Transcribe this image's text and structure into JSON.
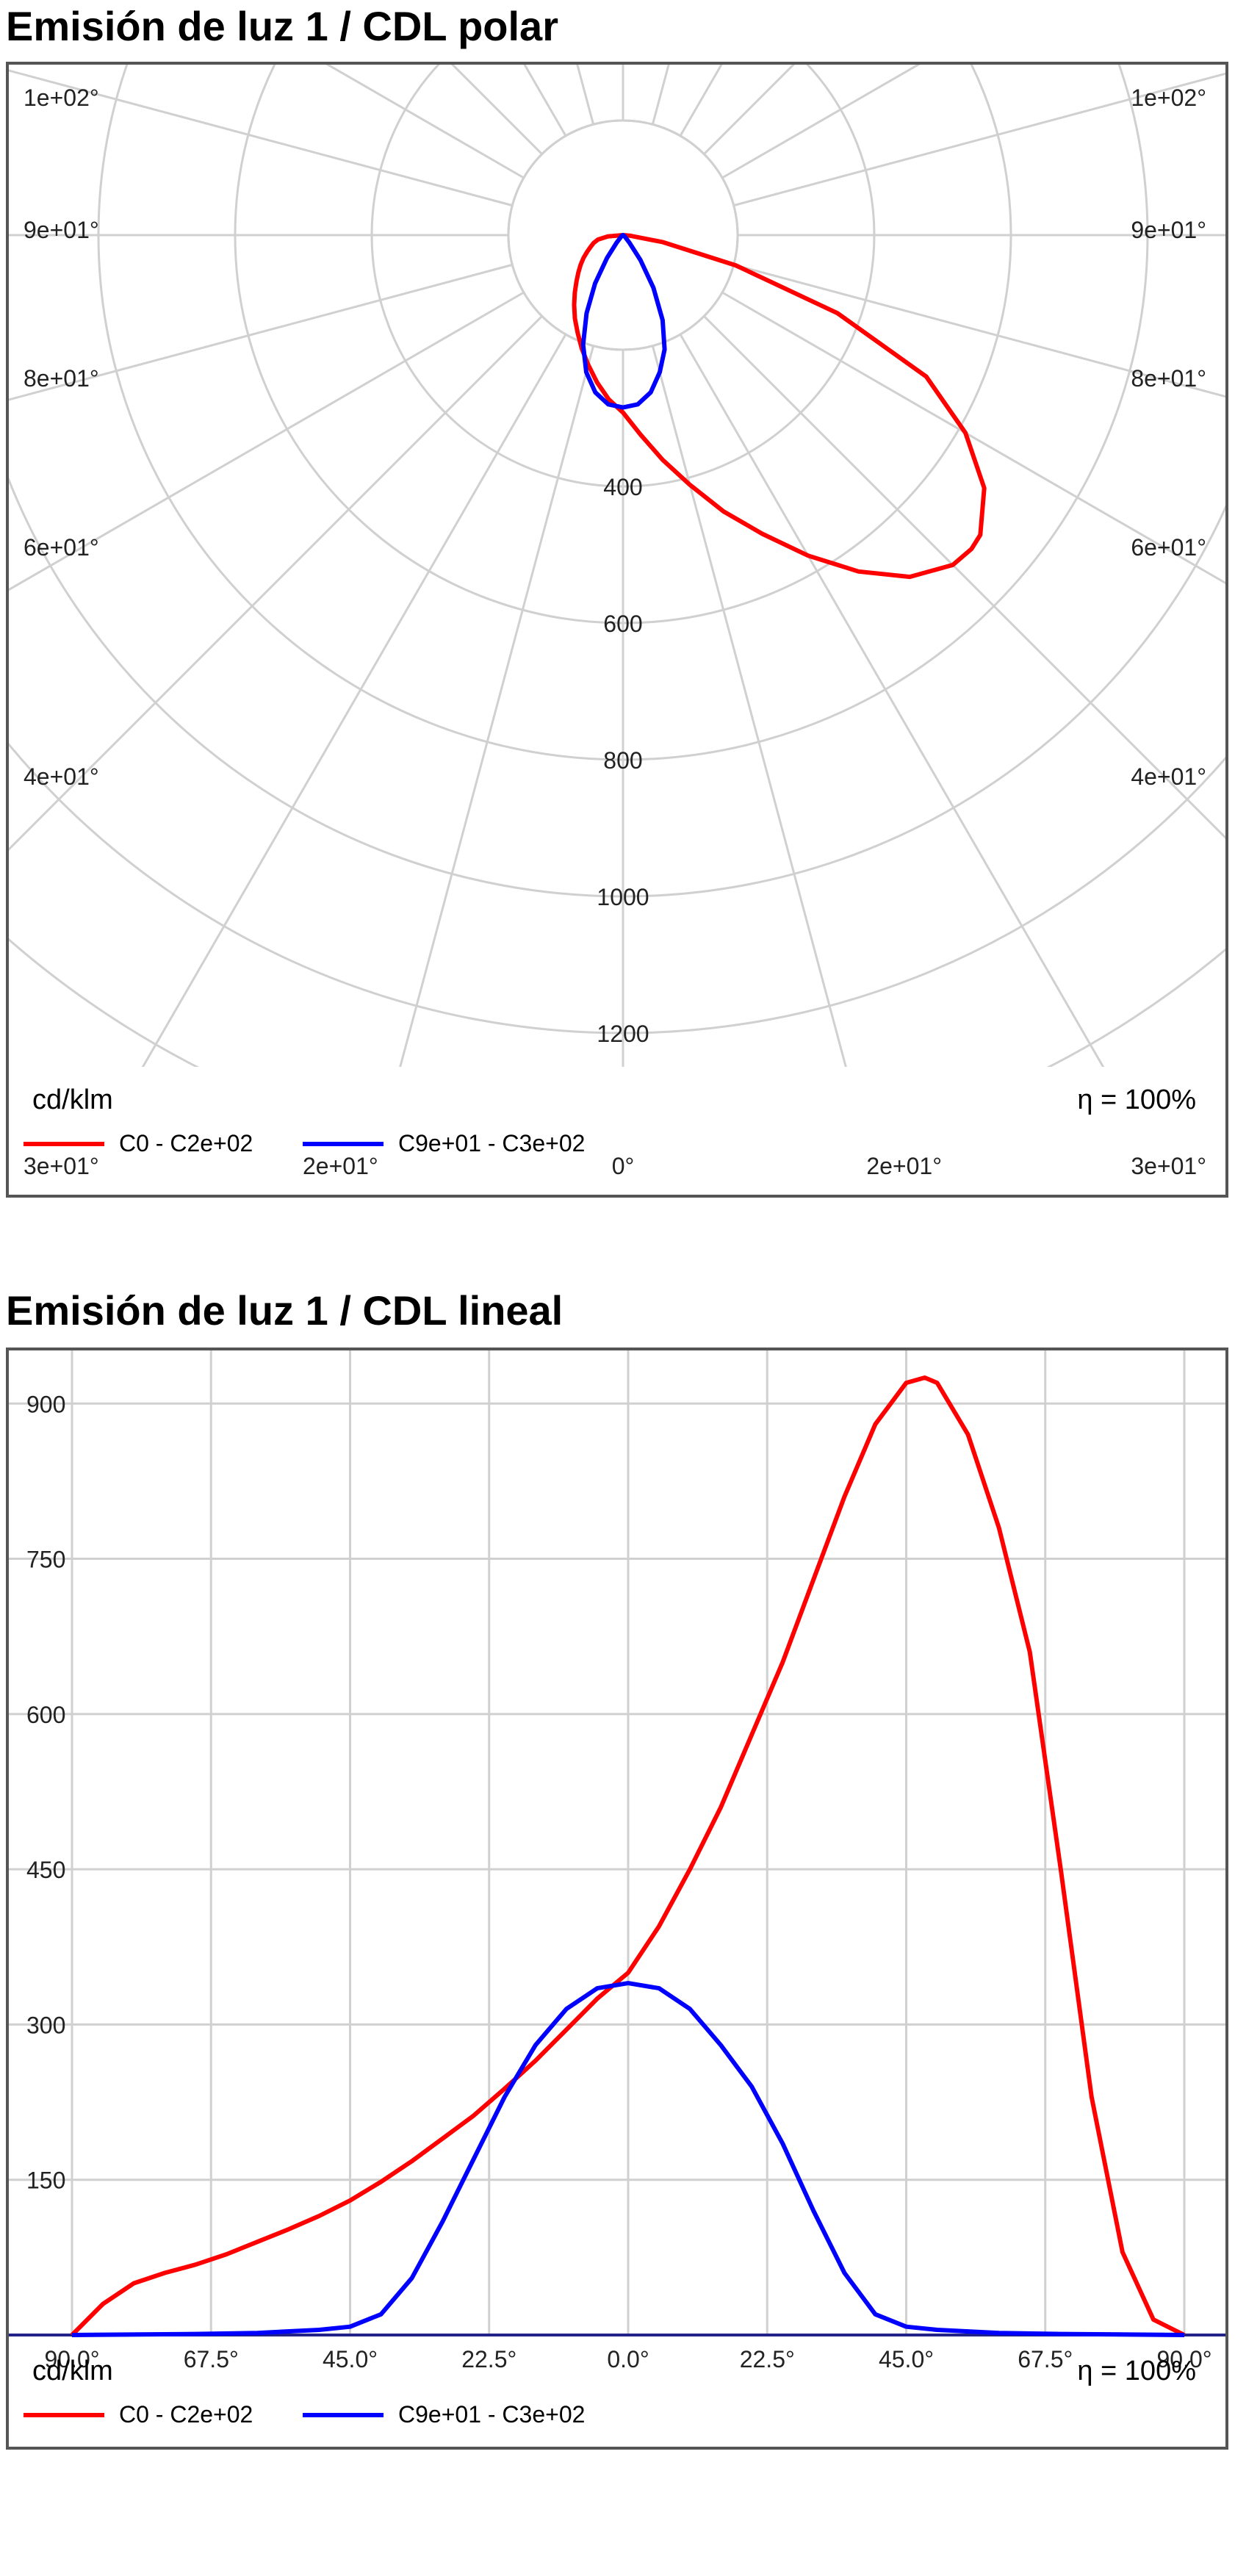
{
  "colors": {
    "c0": "#ff0000",
    "c90": "#0000ff",
    "grid": "#d0d0d0",
    "frame": "#555555"
  },
  "legend": {
    "unit": "cd/klm",
    "efficiency": "η = 100%",
    "series": [
      {
        "name": "C0 - C2e+02",
        "color": "#ff0000"
      },
      {
        "name": "C9e+01 - C3e+02",
        "color": "#0000ff"
      }
    ]
  },
  "chart_data": [
    {
      "type": "polar",
      "title": "Emisión de luz 1 / CDL polar",
      "unit": "cd/klm",
      "efficiency": "η = 100%",
      "radial_ticks": [
        400,
        600,
        800,
        1000,
        1200
      ],
      "radial_max": 1300,
      "angle_ticks_left": [
        {
          "label": "1e+02°",
          "angle": 105
        },
        {
          "label": "9e+01°",
          "angle": 90
        },
        {
          "label": "8e+01°",
          "angle": 75
        },
        {
          "label": "6e+01°",
          "angle": 60
        },
        {
          "label": "4e+01°",
          "angle": 45
        },
        {
          "label": "3e+01°",
          "angle": 30
        },
        {
          "label": "2e+01°",
          "angle": 15
        }
      ],
      "angle_ticks_right": [
        {
          "label": "1e+02°",
          "angle": 105
        },
        {
          "label": "9e+01°",
          "angle": 90
        },
        {
          "label": "8e+01°",
          "angle": 75
        },
        {
          "label": "6e+01°",
          "angle": 60
        },
        {
          "label": "4e+01°",
          "angle": 45
        },
        {
          "label": "3e+01°",
          "angle": 30
        },
        {
          "label": "2e+01°",
          "angle": 15
        }
      ],
      "angle_tick_center": "0°",
      "series": [
        {
          "name": "C0 - C2e+02",
          "color": "#ff0000",
          "points": [
            [
              -90,
              0
            ],
            [
              -85,
              30
            ],
            [
              -80,
              50
            ],
            [
              -75,
              60
            ],
            [
              -70,
              68
            ],
            [
              -65,
              78
            ],
            [
              -60,
              90
            ],
            [
              -55,
              102
            ],
            [
              -50,
              115
            ],
            [
              -45,
              130
            ],
            [
              -40,
              148
            ],
            [
              -35,
              168
            ],
            [
              -30,
              190
            ],
            [
              -25,
              212
            ],
            [
              -20,
              238
            ],
            [
              -15,
              265
            ],
            [
              -10,
              295
            ],
            [
              -5,
              325
            ],
            [
              0,
              350
            ],
            [
              5,
              395
            ],
            [
              10,
              450
            ],
            [
              15,
              510
            ],
            [
              20,
              580
            ],
            [
              25,
              650
            ],
            [
              30,
              730
            ],
            [
              35,
              810
            ],
            [
              40,
              880
            ],
            [
              45,
              920
            ],
            [
              48,
              925
            ],
            [
              50,
              920
            ],
            [
              55,
              870
            ],
            [
              60,
              780
            ],
            [
              65,
              660
            ],
            [
              70,
              450
            ],
            [
              75,
              230
            ],
            [
              80,
              80
            ],
            [
              85,
              15
            ],
            [
              90,
              0
            ]
          ]
        },
        {
          "name": "C9e+01 - C3e+02",
          "color": "#0000ff",
          "points": [
            [
              -90,
              0
            ],
            [
              -70,
              1
            ],
            [
              -60,
              2
            ],
            [
              -50,
              5
            ],
            [
              -45,
              8
            ],
            [
              -40,
              20
            ],
            [
              -35,
              55
            ],
            [
              -30,
              110
            ],
            [
              -25,
              170
            ],
            [
              -20,
              230
            ],
            [
              -15,
              280
            ],
            [
              -10,
              315
            ],
            [
              -5,
              335
            ],
            [
              0,
              340
            ],
            [
              5,
              335
            ],
            [
              10,
              315
            ],
            [
              15,
              280
            ],
            [
              20,
              240
            ],
            [
              25,
              185
            ],
            [
              30,
              120
            ],
            [
              35,
              60
            ],
            [
              40,
              20
            ],
            [
              45,
              8
            ],
            [
              50,
              5
            ],
            [
              60,
              2
            ],
            [
              70,
              1
            ],
            [
              90,
              0
            ]
          ]
        }
      ]
    },
    {
      "type": "line",
      "title": "Emisión de luz 1 / CDL lineal",
      "unit": "cd/klm",
      "efficiency": "η = 100%",
      "xlim": [
        -90,
        90
      ],
      "ylim": [
        0,
        930
      ],
      "x_ticks": [
        {
          "value": -90,
          "label": "90.0°"
        },
        {
          "value": -67.5,
          "label": "67.5°"
        },
        {
          "value": -45,
          "label": "45.0°"
        },
        {
          "value": -22.5,
          "label": "22.5°"
        },
        {
          "value": 0,
          "label": "0.0°"
        },
        {
          "value": 22.5,
          "label": "22.5°"
        },
        {
          "value": 45,
          "label": "45.0°"
        },
        {
          "value": 67.5,
          "label": "67.5°"
        },
        {
          "value": 90,
          "label": "90.0°"
        }
      ],
      "y_ticks": [
        150,
        300,
        450,
        600,
        750,
        900
      ],
      "grid": true
    }
  ]
}
